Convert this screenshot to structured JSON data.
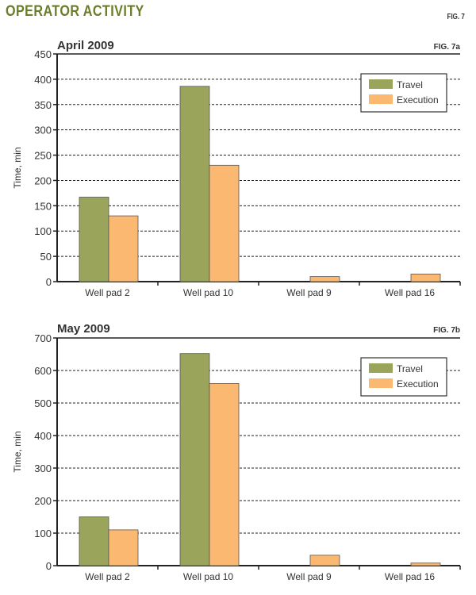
{
  "header": {
    "title": "OPERATOR ACTIVITY",
    "fig_label": "FIG. 7"
  },
  "colors": {
    "travel": "#9aa55b",
    "execution": "#fbb870",
    "grid": "#222222"
  },
  "chart_data": [
    {
      "type": "bar",
      "title": "April 2009",
      "fig_label": "FIG. 7a",
      "ylabel": "Time, min",
      "xlabel": "",
      "ylim": [
        0,
        450
      ],
      "yticks": [
        0,
        50,
        100,
        150,
        200,
        250,
        300,
        350,
        400,
        450
      ],
      "categories": [
        "Well pad 2",
        "Well pad 10",
        "Well pad 9",
        "Well pad 16"
      ],
      "series": [
        {
          "name": "Travel",
          "values": [
            167,
            386,
            0,
            0
          ]
        },
        {
          "name": "Execution",
          "values": [
            130,
            230,
            10,
            15
          ]
        }
      ],
      "legend": "top-right"
    },
    {
      "type": "bar",
      "title": "May 2009",
      "fig_label": "FIG. 7b",
      "ylabel": "Time, min",
      "xlabel": "",
      "ylim": [
        0,
        700
      ],
      "yticks": [
        0,
        100,
        200,
        300,
        400,
        500,
        600,
        700
      ],
      "categories": [
        "Well pad 2",
        "Well pad 10",
        "Well pad 9",
        "Well pad 16"
      ],
      "series": [
        {
          "name": "Travel",
          "values": [
            150,
            652,
            0,
            0
          ]
        },
        {
          "name": "Execution",
          "values": [
            110,
            560,
            32,
            8
          ]
        }
      ],
      "legend": "top-right"
    }
  ]
}
